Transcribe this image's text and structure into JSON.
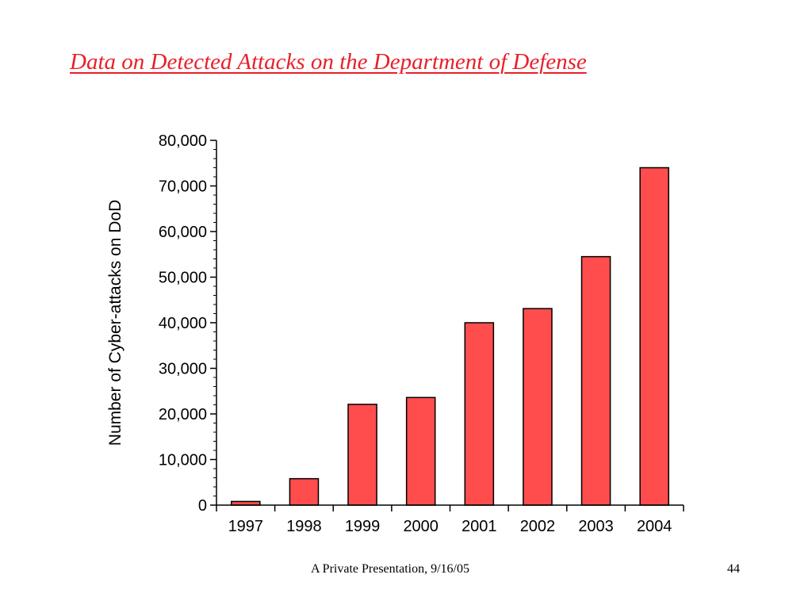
{
  "slide": {
    "title": "Data on Detected Attacks on the Department of Defense",
    "title_color": "#e8202a",
    "footer_left": "A Private Presentation, 9/16/05",
    "footer_right": "44"
  },
  "chart_data": {
    "type": "bar",
    "categories": [
      "1997",
      "1998",
      "1999",
      "2000",
      "2001",
      "2002",
      "2003",
      "2004"
    ],
    "values": [
      800,
      5800,
      22100,
      23600,
      40000,
      43100,
      54500,
      74000
    ],
    "title": "",
    "xlabel": "",
    "ylabel": "Number of Cyber-attacks on DoD",
    "ylim": [
      0,
      80000
    ],
    "yticks": [
      0,
      10000,
      20000,
      30000,
      40000,
      50000,
      60000,
      70000,
      80000
    ],
    "ytick_labels": [
      "0",
      "10,000",
      "20,000",
      "30,000",
      "40,000",
      "50,000",
      "60,000",
      "70,000",
      "80,000"
    ],
    "minor_ticks_per_major": 4,
    "grid": false,
    "bar_color": "#ff4d4d"
  }
}
